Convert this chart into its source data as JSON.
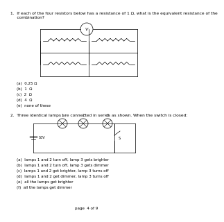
{
  "background": "#ffffff",
  "q1_text_line1": "1.  If each of the four resistors below has a resistance of 1 Ω, what is the equivalent resistance of the",
  "q1_text_line2": "     combination?",
  "q1_options": [
    "(a)  0.25 Ω",
    "(b)  1  Ω",
    "(c)  2  Ω",
    "(d)  4  Ω",
    "(e)  none of these"
  ],
  "q2_text": "2.  Three identical lamps are connected in series as shown. When the switch is closed:",
  "q2_options": [
    "(a)  lamps 1 and 2 turn off, lamp 3 gets brighter",
    "(b)  lamps 1 and 2 turn off, lamp 3 gets dimmer",
    "(c)  lamps 1 and 2 get brighter, lamp 3 turns off",
    "(d)  lamps 1 and 2 get dimmer, lamp 3 turns off",
    "(e)  all the lamps get brighter",
    "(f)  all the lamps get dimmer"
  ],
  "page_label": "page  4 of 9",
  "font_size_question": 4.2,
  "font_size_options": 4.0,
  "font_size_page": 4.0,
  "line_color": "#000000"
}
